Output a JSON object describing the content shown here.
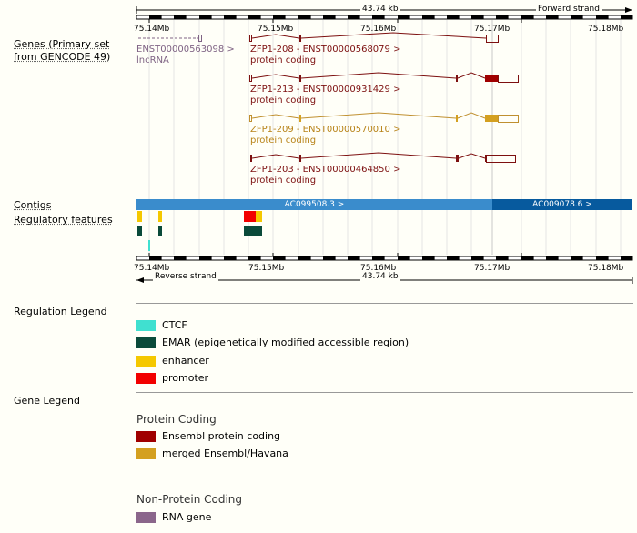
{
  "top_bar": {
    "span_label": "43.74 kb",
    "strand_label": "Forward strand"
  },
  "bottom_bar": {
    "span_label": "43.74 kb",
    "strand_label": "Reverse strand"
  },
  "scale_ticks": [
    "75.14Mb",
    "75.15Mb",
    "75.16Mb",
    "75.17Mb",
    "75.18Mb"
  ],
  "tracks": {
    "genes_label": "Genes (Primary set from GENCODE 49)",
    "contigs_label": "Contigs",
    "regulatory_label": "Regulatory features"
  },
  "transcripts": [
    {
      "id": "ENST00000563098",
      "line1": "ENST00000563098 >",
      "line2": "lncRNA",
      "color": "#7f6384"
    },
    {
      "id": "ZFP1-208",
      "line1": "ZFP1-208 - ENST00000568079 >",
      "line2": "protein coding",
      "color": "#7d1010"
    },
    {
      "id": "ZFP1-213",
      "line1": "ZFP1-213 - ENST00000931429 >",
      "line2": "protein coding",
      "color": "#7d1010"
    },
    {
      "id": "ZFP1-209",
      "line1": "ZFP1-209 - ENST00000570010 >",
      "line2": "protein coding",
      "color": "#b88318"
    },
    {
      "id": "ZFP1-203",
      "line1": "ZFP1-203 - ENST00000464850 >",
      "line2": "protein coding",
      "color": "#7d1010"
    }
  ],
  "contigs": [
    {
      "label": "AC099508.3 >",
      "color": "#3a8ccc"
    },
    {
      "label": "AC009078.6 >",
      "color": "#075a9e"
    }
  ],
  "regulation_legend": {
    "title": "Regulation Legend",
    "items": [
      {
        "label": "CTCF",
        "color": "#40e0d0"
      },
      {
        "label": "EMAR (epigenetically modified accessible region)",
        "color": "#0a4a3a"
      },
      {
        "label": "enhancer",
        "color": "#f5c800"
      },
      {
        "label": "promoter",
        "color": "#f20000"
      }
    ]
  },
  "gene_legend": {
    "title": "Gene Legend",
    "groups": [
      {
        "title": "Protein Coding",
        "items": [
          {
            "label": "Ensembl protein coding",
            "color": "#a00000"
          },
          {
            "label": "merged Ensembl/Havana",
            "color": "#d4a020"
          }
        ]
      },
      {
        "title": "Non-Protein Coding",
        "items": [
          {
            "label": "RNA gene",
            "color": "#8b668b"
          }
        ]
      }
    ]
  }
}
